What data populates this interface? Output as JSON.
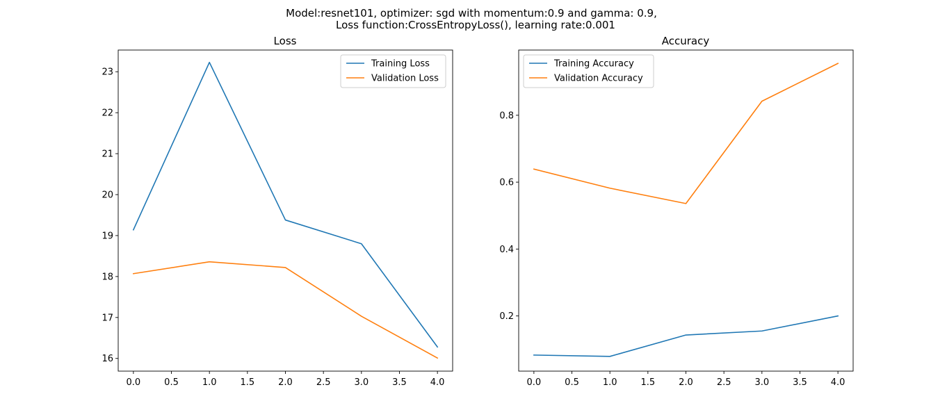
{
  "figure": {
    "suptitle_line1": "Model:resnet101, optimizer: sgd with momentum:0.9 and gamma: 0.9,",
    "suptitle_line2": "Loss function:CrossEntropyLoss(), learning rate:0.001"
  },
  "chart_data": [
    {
      "type": "line",
      "title": "Loss",
      "xlabel": "",
      "ylabel": "",
      "x": [
        0,
        1,
        2,
        3,
        4
      ],
      "xlim": [
        -0.2,
        4.2
      ],
      "ylim": [
        15.69,
        23.53
      ],
      "xticks": [
        0.0,
        0.5,
        1.0,
        1.5,
        2.0,
        2.5,
        3.0,
        3.5,
        4.0
      ],
      "xticklabels": [
        "0.0",
        "0.5",
        "1.0",
        "1.5",
        "2.0",
        "2.5",
        "3.0",
        "3.5",
        "4.0"
      ],
      "yticks": [
        16,
        17,
        18,
        19,
        20,
        21,
        22,
        23
      ],
      "yticklabels": [
        "16",
        "17",
        "18",
        "19",
        "20",
        "21",
        "22",
        "23"
      ],
      "legend_position": "upper-right",
      "grid": false,
      "series": [
        {
          "name": "Training Loss",
          "color": "#1f77b4",
          "values": [
            19.14,
            23.23,
            19.38,
            18.8,
            16.28
          ]
        },
        {
          "name": "Validation Loss",
          "color": "#ff7f0e",
          "values": [
            18.07,
            18.36,
            18.22,
            17.03,
            16.01
          ]
        }
      ]
    },
    {
      "type": "line",
      "title": "Accuracy",
      "xlabel": "",
      "ylabel": "",
      "x": [
        0,
        1,
        2,
        3,
        4
      ],
      "xlim": [
        -0.2,
        4.2
      ],
      "ylim": [
        0.035,
        0.995
      ],
      "xticks": [
        0.0,
        0.5,
        1.0,
        1.5,
        2.0,
        2.5,
        3.0,
        3.5,
        4.0
      ],
      "xticklabels": [
        "0.0",
        "0.5",
        "1.0",
        "1.5",
        "2.0",
        "2.5",
        "3.0",
        "3.5",
        "4.0"
      ],
      "yticks": [
        0.2,
        0.4,
        0.6,
        0.8
      ],
      "yticklabels": [
        "0.2",
        "0.4",
        "0.6",
        "0.8"
      ],
      "legend_position": "upper-left",
      "grid": false,
      "series": [
        {
          "name": "Training Accuracy",
          "color": "#1f77b4",
          "values": [
            0.083,
            0.079,
            0.143,
            0.155,
            0.2
          ]
        },
        {
          "name": "Validation Accuracy",
          "color": "#ff7f0e",
          "values": [
            0.639,
            0.582,
            0.536,
            0.842,
            0.955
          ]
        }
      ]
    }
  ]
}
